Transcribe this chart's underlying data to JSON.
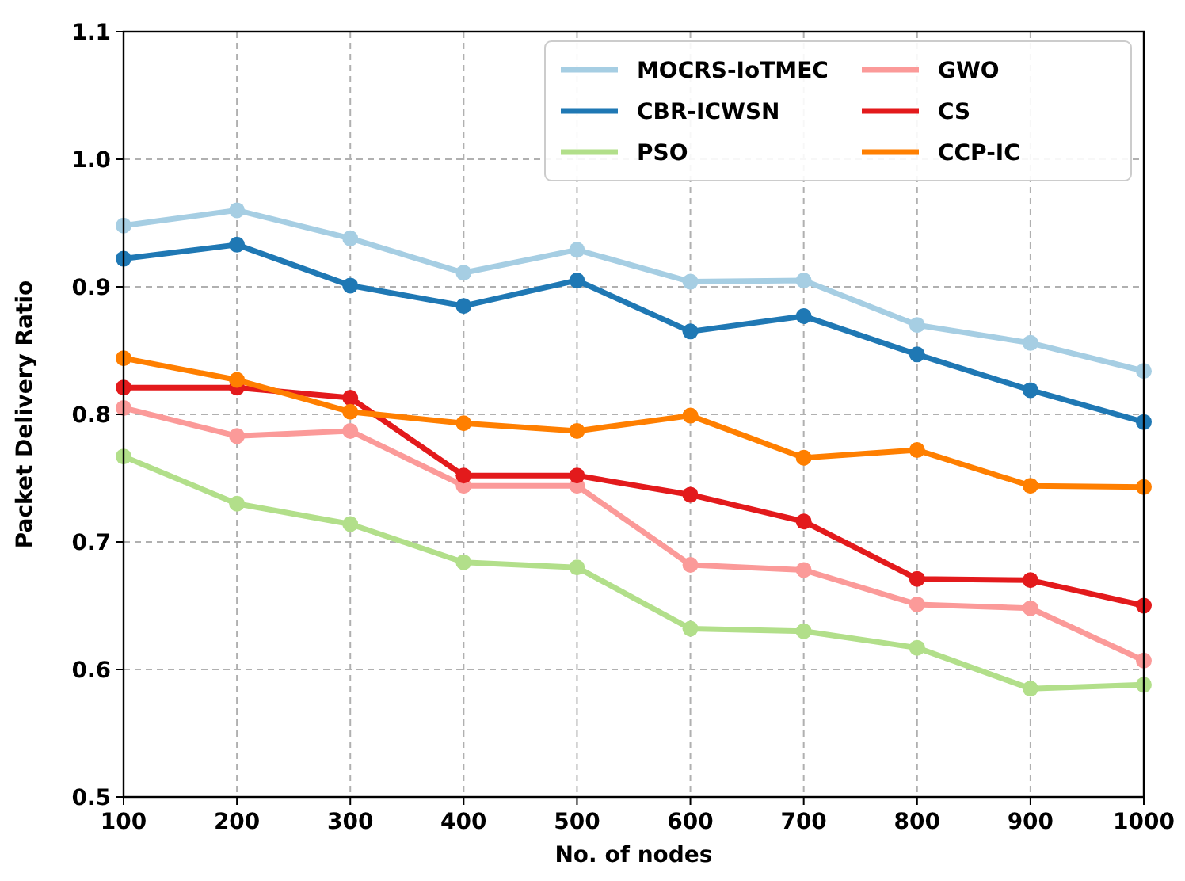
{
  "chart_data": {
    "type": "line",
    "xlabel": "No. of nodes",
    "ylabel": "Packet Delivery Ratio",
    "x": [
      100,
      200,
      300,
      400,
      500,
      600,
      700,
      800,
      900,
      1000
    ],
    "xlim": [
      100,
      1000
    ],
    "xticks": [
      100,
      200,
      300,
      400,
      500,
      600,
      700,
      800,
      900,
      1000
    ],
    "ylim": [
      0.5,
      1.1
    ],
    "yticks": [
      {
        "value": 0.5,
        "label": "0.5"
      },
      {
        "value": 0.6,
        "label": "0.6"
      },
      {
        "value": 0.7,
        "label": "0.7"
      },
      {
        "value": 0.8,
        "label": "0.8"
      },
      {
        "value": 0.9,
        "label": "0.9"
      },
      {
        "value": 1.0,
        "label": "1.0"
      },
      {
        "value": 1.1,
        "label": "1.1"
      }
    ],
    "grid": true,
    "legend": "top right",
    "marker": "circle",
    "line_style": "solid",
    "series": [
      {
        "name": "MOCRS-IoTMEC",
        "color": "#a6cee3",
        "values": [
          0.948,
          0.96,
          0.938,
          0.911,
          0.929,
          0.904,
          0.905,
          0.87,
          0.856,
          0.834
        ]
      },
      {
        "name": "CBR-ICWSN",
        "color": "#1f78b4",
        "values": [
          0.922,
          0.933,
          0.901,
          0.885,
          0.905,
          0.865,
          0.877,
          0.847,
          0.819,
          0.794
        ]
      },
      {
        "name": "PSO",
        "color": "#b2df8a",
        "values": [
          0.767,
          0.73,
          0.714,
          0.684,
          0.68,
          0.632,
          0.63,
          0.617,
          0.585,
          0.588
        ]
      },
      {
        "name": "GWO",
        "color": "#fb9a99",
        "values": [
          0.805,
          0.783,
          0.787,
          0.744,
          0.744,
          0.682,
          0.678,
          0.651,
          0.648,
          0.607
        ]
      },
      {
        "name": "CS",
        "color": "#e31a1c",
        "values": [
          0.821,
          0.821,
          0.813,
          0.752,
          0.752,
          0.737,
          0.716,
          0.671,
          0.67,
          0.65
        ]
      },
      {
        "name": "CCP-IC",
        "color": "#ff7f00",
        "values": [
          0.844,
          0.827,
          0.802,
          0.793,
          0.787,
          0.799,
          0.766,
          0.772,
          0.744,
          0.743
        ]
      }
    ]
  }
}
